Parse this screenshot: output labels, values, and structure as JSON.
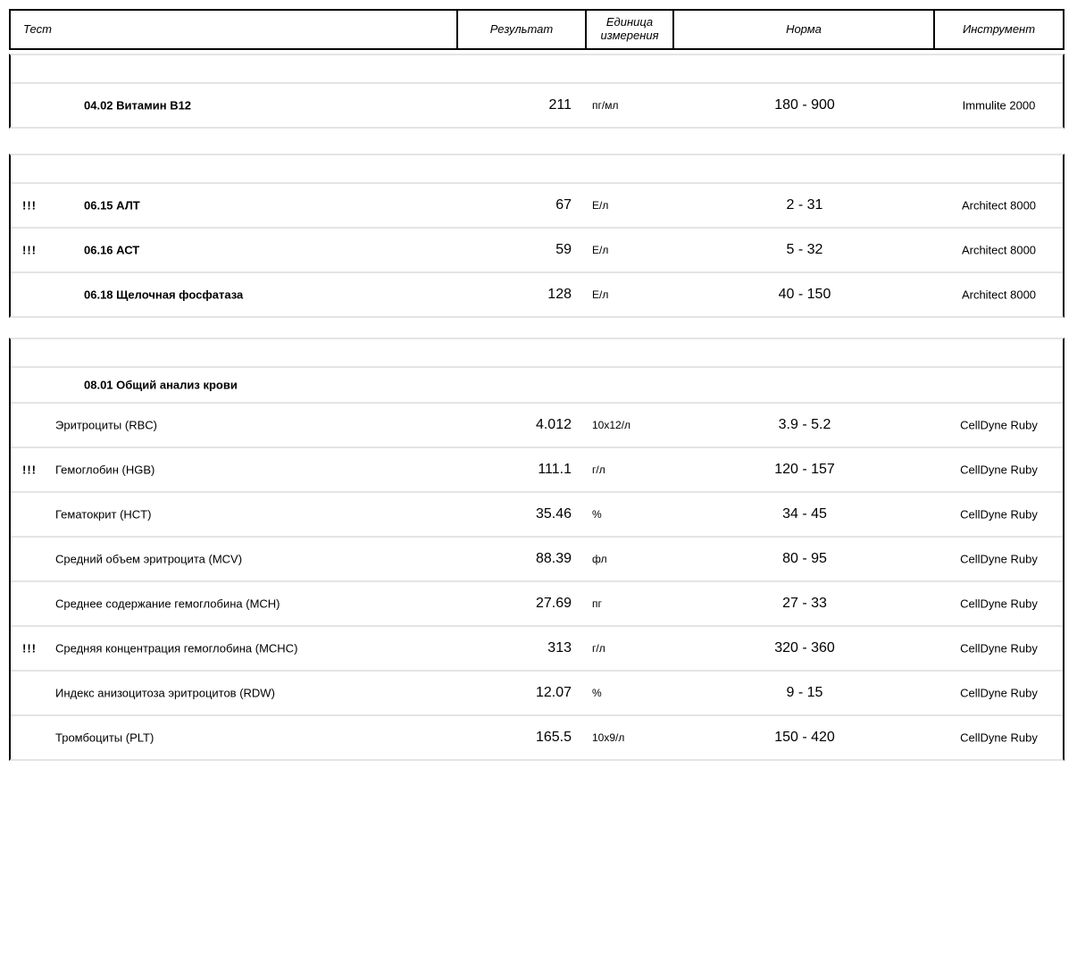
{
  "header": {
    "columns": [
      "Тест",
      "Результат",
      "Единица измерения",
      "Норма",
      "Инструмент"
    ]
  },
  "colors": {
    "border_black": "#000000",
    "separator_gray": "#e4e4e4",
    "text": "#000000",
    "background": "#ffffff"
  },
  "alert_symbol": "!!!",
  "sections": [
    {
      "tests": [
        {
          "flag": "",
          "name": "04.02 Витамин В12",
          "result": "211",
          "unit": "пг/мл",
          "norm": "180 - 900",
          "instrument": "Immulite 2000"
        }
      ]
    },
    {
      "tests": [
        {
          "flag": "!!!",
          "name": "06.15 АЛТ",
          "result": "67",
          "unit": "Е/л",
          "norm": "2 - 31",
          "instrument": "Architect 8000"
        },
        {
          "flag": "!!!",
          "name": "06.16 АСТ",
          "result": "59",
          "unit": "Е/л",
          "norm": "5 - 32",
          "instrument": "Architect 8000"
        },
        {
          "flag": "",
          "name": "06.18 Щелочная фосфатаза",
          "result": "128",
          "unit": "Е/л",
          "norm": "40 - 150",
          "instrument": "Architect 8000"
        }
      ]
    },
    {
      "panel_title": "08.01 Общий анализ крови",
      "tests": [
        {
          "flag": "",
          "name": "Эритроциты (RBC)",
          "result": "4.012",
          "unit": "10x12/л",
          "norm": "3.9 - 5.2",
          "instrument": "CellDyne Ruby"
        },
        {
          "flag": "!!!",
          "name": "Гемоглобин (HGB)",
          "result": "111.1",
          "unit": "г/л",
          "norm": "120 - 157",
          "instrument": "CellDyne Ruby"
        },
        {
          "flag": "",
          "name": "Гематокрит (HCT)",
          "result": "35.46",
          "unit": "%",
          "norm": "34 - 45",
          "instrument": "CellDyne Ruby"
        },
        {
          "flag": "",
          "name": "Средний объем эритроцита (MCV)",
          "result": "88.39",
          "unit": "фл",
          "norm": "80 - 95",
          "instrument": "CellDyne Ruby"
        },
        {
          "flag": "",
          "name": "Среднее содержание гемоглобина (MCH)",
          "result": "27.69",
          "unit": "пг",
          "norm": "27 - 33",
          "instrument": "CellDyne Ruby"
        },
        {
          "flag": "!!!",
          "name": "Средняя концентрация гемоглобина (MCHC)",
          "result": "313",
          "unit": "г/л",
          "norm": "320 - 360",
          "instrument": "CellDyne Ruby"
        },
        {
          "flag": "",
          "name": "Индекс анизоцитоза эритроцитов (RDW)",
          "result": "12.07",
          "unit": "%",
          "norm": "9 - 15",
          "instrument": "CellDyne Ruby"
        },
        {
          "flag": "",
          "name": "Тромбоциты (PLT)",
          "result": "165.5",
          "unit": "10x9/л",
          "norm": "150 - 420",
          "instrument": "CellDyne Ruby"
        }
      ]
    }
  ]
}
